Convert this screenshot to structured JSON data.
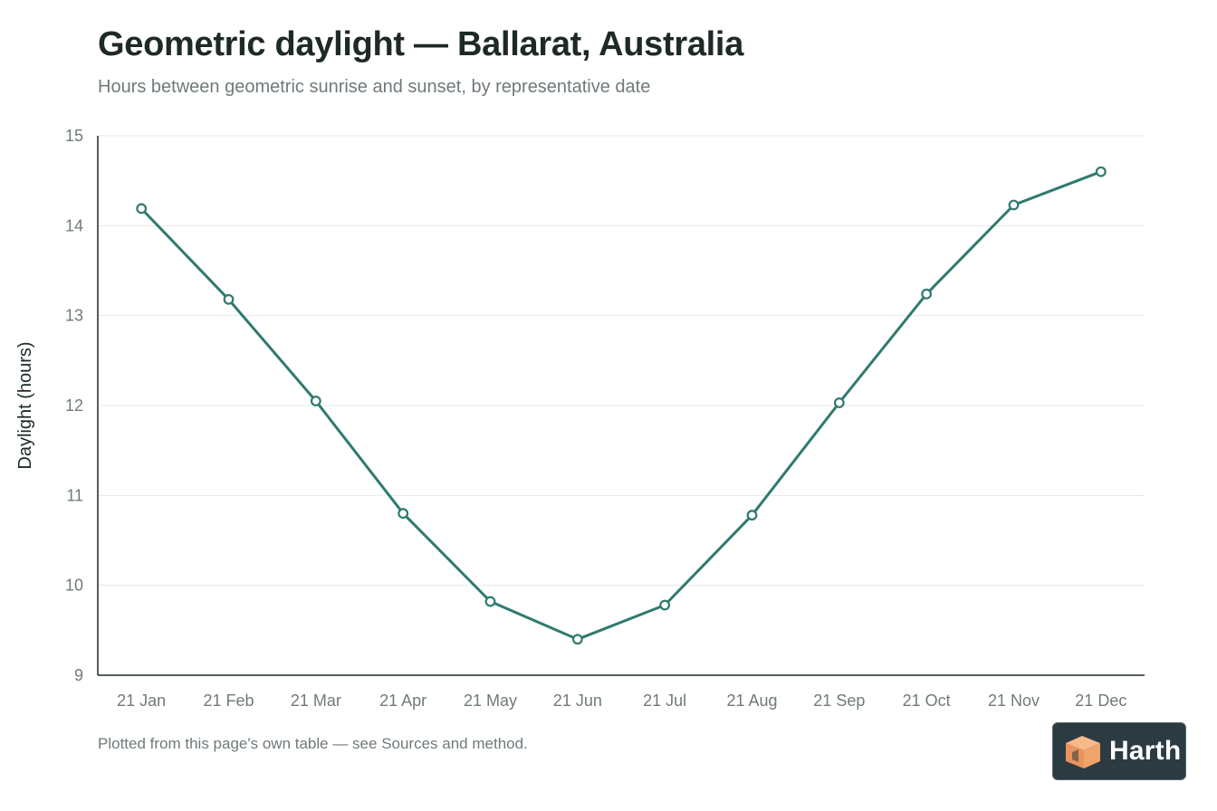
{
  "title": "Geometric daylight — Ballarat, Australia",
  "subtitle": "Hours between geometric sunrise and sunset, by representative date",
  "footnote": "Plotted from this page's own table — see Sources and method.",
  "brand": {
    "name": "Harth",
    "logo_icon": "box-icon",
    "colors": {
      "badge": "#2c3a41",
      "logo": "#f0a36b"
    }
  },
  "colors": {
    "line": "#2f7a6f",
    "title": "#1d2a27",
    "muted": "#6f7b78",
    "grid": "#e6e9e8",
    "axis": "#1d2a27"
  },
  "chart_data": {
    "type": "line",
    "title": "Geometric daylight — Ballarat, Australia",
    "subtitle": "Hours between geometric sunrise and sunset, by representative date",
    "xlabel": "",
    "ylabel": "Daylight (hours)",
    "categories": [
      "21 Jan",
      "21 Feb",
      "21 Mar",
      "21 Apr",
      "21 May",
      "21 Jun",
      "21 Jul",
      "21 Aug",
      "21 Sep",
      "21 Oct",
      "21 Nov",
      "21 Dec"
    ],
    "series": [
      {
        "values": [
          14.19,
          13.18,
          12.05,
          10.8,
          9.82,
          9.4,
          9.78,
          10.78,
          12.03,
          13.24,
          14.23,
          14.6
        ]
      }
    ],
    "ylim": [
      9,
      15
    ],
    "yticks": [
      9,
      10,
      11,
      12,
      13,
      14,
      15
    ],
    "grid": true,
    "markers": "hollow-circle"
  }
}
